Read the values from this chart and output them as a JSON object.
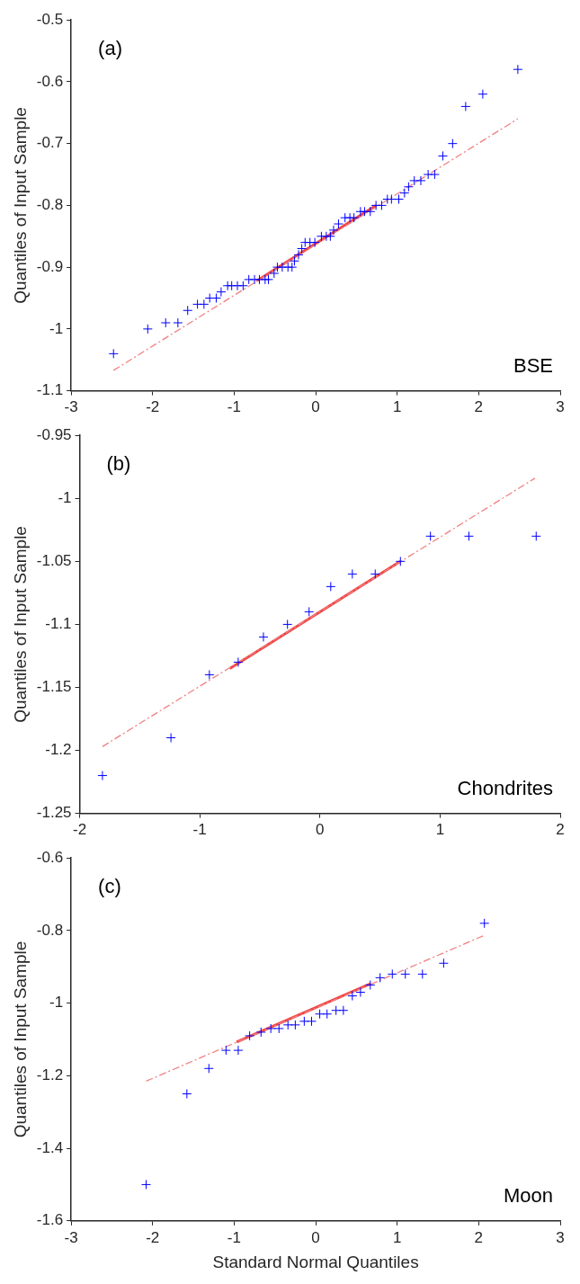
{
  "chart_data": [
    {
      "type": "scatter",
      "ylabel": "Quantiles of Input Sample",
      "annotations": [
        "(a)",
        "BSE"
      ],
      "xlim": [
        -3,
        3
      ],
      "xticks": [
        -3,
        -2,
        -1,
        0,
        1,
        2,
        3
      ],
      "ylim": [
        -1.1,
        -0.5
      ],
      "yticks": [
        -1.1,
        -1,
        -0.9,
        -0.8,
        -0.7,
        -0.6,
        -0.5
      ],
      "grid": false,
      "legend": false,
      "series": [
        {
          "marker": "cross",
          "color": "#0000ff",
          "x": [
            -2.48,
            -2.06,
            -1.84,
            -1.69,
            -1.57,
            -1.45,
            -1.37,
            -1.3,
            -1.22,
            -1.16,
            -1.08,
            -1.03,
            -0.96,
            -0.89,
            -0.82,
            -0.75,
            -0.69,
            -0.62,
            -0.58,
            -0.51,
            -0.47,
            -0.41,
            -0.34,
            -0.29,
            -0.26,
            -0.21,
            -0.17,
            -0.13,
            -0.07,
            -0.01,
            0.07,
            0.13,
            0.18,
            0.22,
            0.28,
            0.36,
            0.42,
            0.47,
            0.55,
            0.6,
            0.67,
            0.74,
            0.81,
            0.88,
            0.93,
            1.02,
            1.09,
            1.14,
            1.21,
            1.29,
            1.38,
            1.46,
            1.56,
            1.68,
            1.84,
            2.05,
            2.48
          ],
          "values": [
            -1.04,
            -1.0,
            -0.99,
            -0.99,
            -0.97,
            -0.96,
            -0.96,
            -0.95,
            -0.95,
            -0.94,
            -0.93,
            -0.93,
            -0.93,
            -0.93,
            -0.92,
            -0.92,
            -0.92,
            -0.92,
            -0.92,
            -0.91,
            -0.9,
            -0.9,
            -0.9,
            -0.9,
            -0.89,
            -0.88,
            -0.87,
            -0.86,
            -0.86,
            -0.86,
            -0.85,
            -0.85,
            -0.85,
            -0.84,
            -0.83,
            -0.82,
            -0.82,
            -0.82,
            -0.81,
            -0.81,
            -0.81,
            -0.8,
            -0.8,
            -0.79,
            -0.79,
            -0.79,
            -0.78,
            -0.77,
            -0.76,
            -0.76,
            -0.75,
            -0.75,
            -0.72,
            -0.7,
            -0.64,
            -0.62,
            -0.58
          ]
        },
        {
          "type": "line",
          "marker": "none",
          "line_style": "dashed",
          "color": "#f08080",
          "x": [
            -2.48,
            2.48
          ],
          "values": [
            -1.067,
            -0.66
          ]
        },
        {
          "type": "line",
          "marker": "none",
          "line_style": "solid",
          "color": "#f04848",
          "x": [
            -0.72,
            0.74
          ],
          "values": [
            -0.922,
            -0.8
          ]
        }
      ]
    },
    {
      "type": "scatter",
      "ylabel": "Quantiles of Input Sample",
      "annotations": [
        "(b)",
        "Chondrites"
      ],
      "xlim": [
        -2,
        2
      ],
      "xticks": [
        -2,
        -1,
        0,
        1,
        2
      ],
      "ylim": [
        -1.25,
        -0.95
      ],
      "yticks": [
        -1.25,
        -1.2,
        -1.15,
        -1.1,
        -1.05,
        -1,
        -0.95
      ],
      "grid": false,
      "legend": false,
      "series": [
        {
          "marker": "cross",
          "color": "#0000ff",
          "x": [
            -1.81,
            -1.24,
            -0.92,
            -0.68,
            -0.47,
            -0.27,
            -0.09,
            0.09,
            0.27,
            0.46,
            0.67,
            0.92,
            1.24,
            1.8
          ],
          "values": [
            -1.22,
            -1.19,
            -1.14,
            -1.13,
            -1.11,
            -1.1,
            -1.09,
            -1.07,
            -1.06,
            -1.06,
            -1.05,
            -1.03,
            -1.03,
            -1.03
          ]
        },
        {
          "type": "line",
          "marker": "none",
          "line_style": "dashed",
          "color": "#f08080",
          "x": [
            -1.81,
            1.79
          ],
          "values": [
            -1.197,
            -0.984
          ]
        },
        {
          "type": "line",
          "marker": "none",
          "line_style": "solid",
          "color": "#f04848",
          "x": [
            -0.75,
            0.67
          ],
          "values": [
            -1.135,
            -1.05
          ]
        }
      ]
    },
    {
      "type": "scatter",
      "xlabel": "Standard Normal Quantiles",
      "ylabel": "Quantiles of Input Sample",
      "annotations": [
        "(c)",
        "Moon"
      ],
      "xlim": [
        -3,
        3
      ],
      "xticks": [
        -3,
        -2,
        -1,
        0,
        1,
        2,
        3
      ],
      "ylim": [
        -1.6,
        -0.6
      ],
      "yticks": [
        -1.6,
        -1.4,
        -1.2,
        -1,
        -0.8,
        -0.6
      ],
      "grid": false,
      "legend": false,
      "series": [
        {
          "marker": "cross",
          "color": "#0000ff",
          "x": [
            -2.08,
            -1.58,
            -1.31,
            -1.1,
            -0.95,
            -0.81,
            -0.67,
            -0.55,
            -0.45,
            -0.34,
            -0.25,
            -0.14,
            -0.05,
            0.05,
            0.14,
            0.25,
            0.34,
            0.45,
            0.55,
            0.67,
            0.79,
            0.94,
            1.1,
            1.31,
            1.57,
            2.07
          ],
          "values": [
            -1.5,
            -1.25,
            -1.18,
            -1.13,
            -1.13,
            -1.09,
            -1.08,
            -1.07,
            -1.07,
            -1.06,
            -1.06,
            -1.05,
            -1.05,
            -1.03,
            -1.03,
            -1.02,
            -1.02,
            -0.98,
            -0.97,
            -0.95,
            -0.93,
            -0.92,
            -0.92,
            -0.92,
            -0.89,
            -0.78
          ]
        },
        {
          "type": "line",
          "marker": "none",
          "line_style": "dashed",
          "color": "#f08080",
          "x": [
            -2.08,
            2.07
          ],
          "values": [
            -1.215,
            -0.813
          ]
        },
        {
          "type": "line",
          "marker": "none",
          "line_style": "solid",
          "color": "#f04848",
          "x": [
            -0.97,
            0.67
          ],
          "values": [
            -1.107,
            -0.947
          ]
        }
      ]
    }
  ]
}
